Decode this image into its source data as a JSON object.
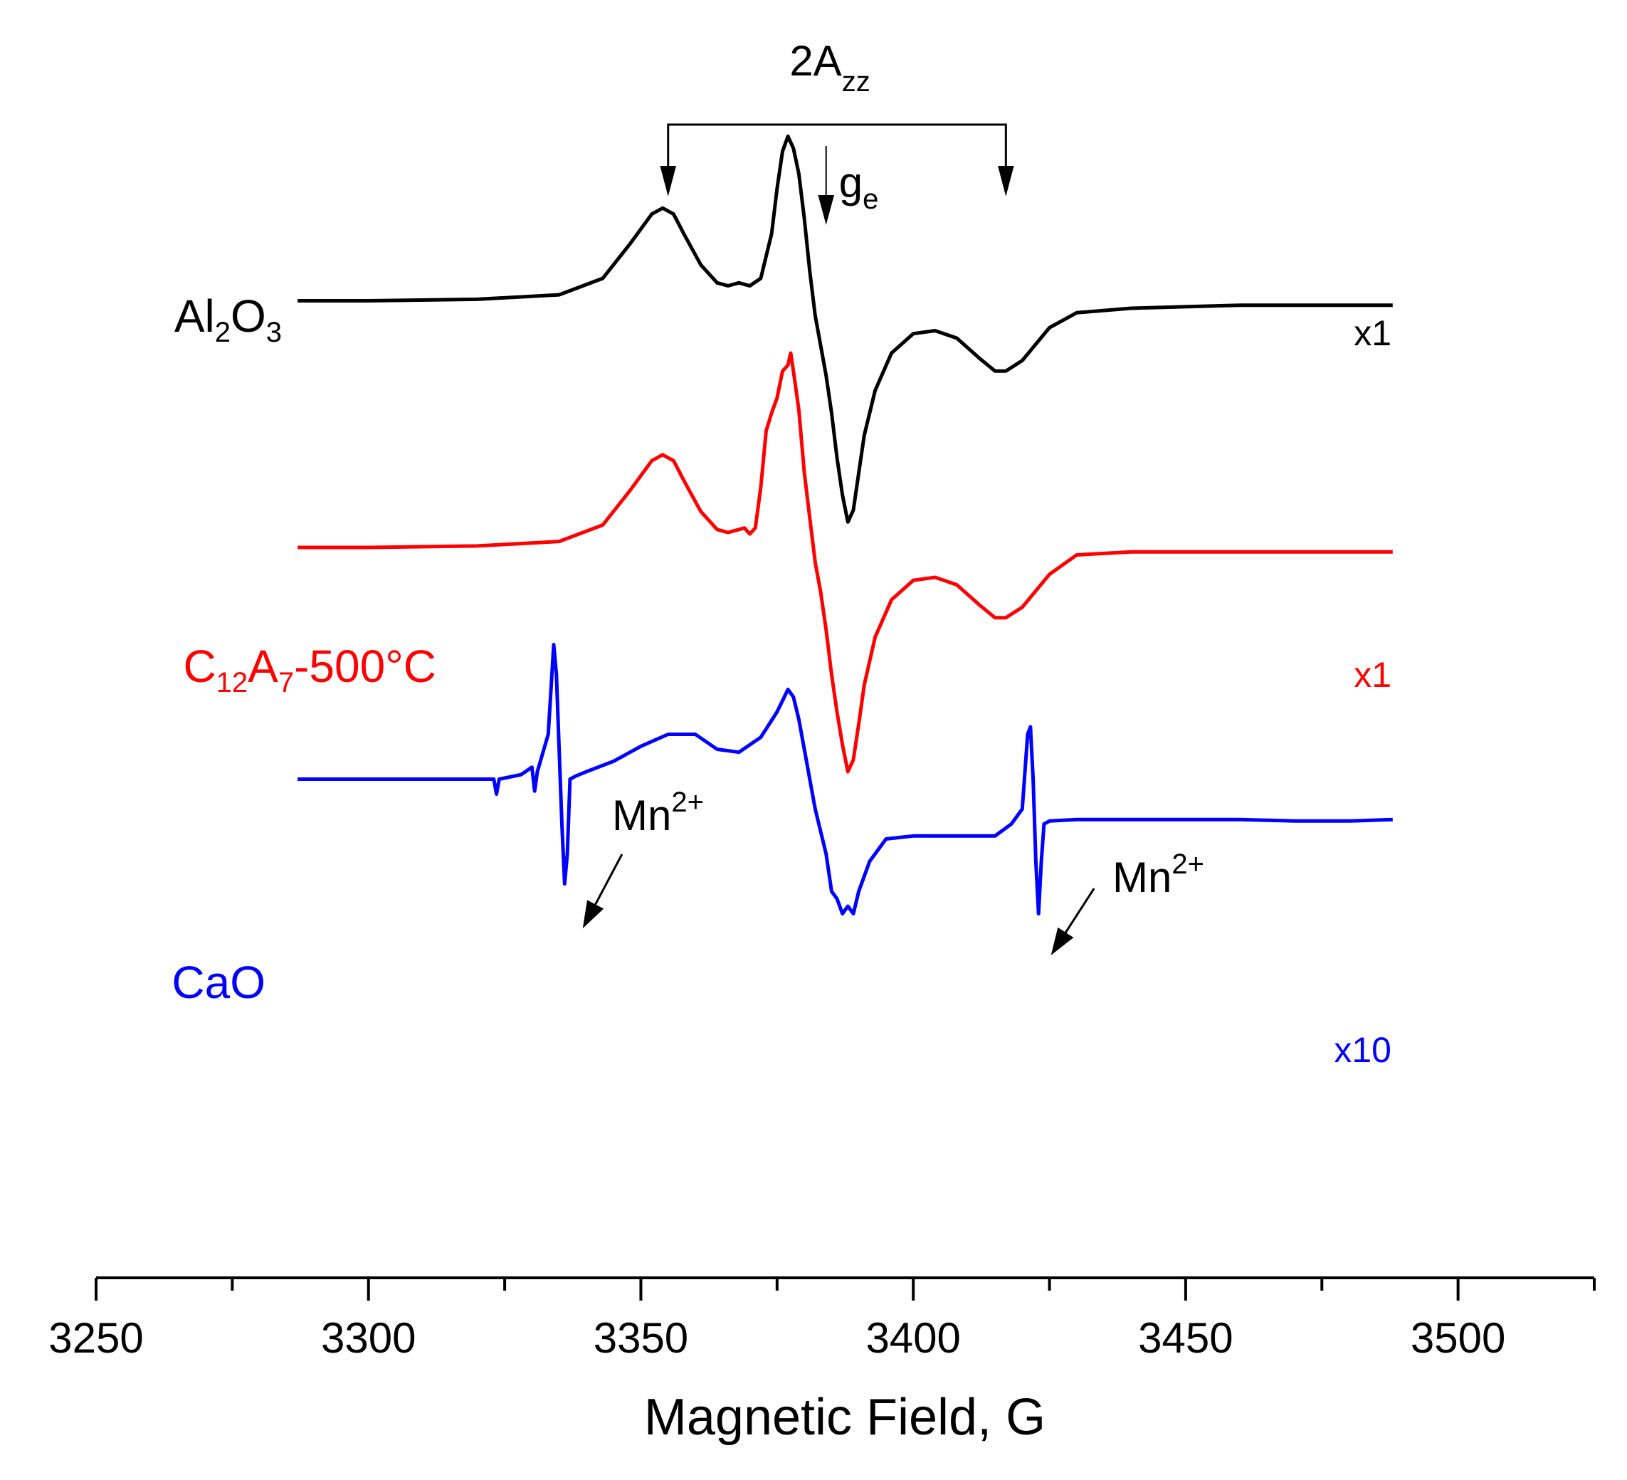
{
  "chart_data": {
    "type": "line",
    "title": "",
    "xlabel": "Magnetic Field, G",
    "ylabel": "",
    "xlim": [
      3250,
      3525
    ],
    "xticks": [
      "3250",
      "3300",
      "3350",
      "3400",
      "3450",
      "3500"
    ],
    "xtick_values": [
      3250,
      3300,
      3350,
      3400,
      3450,
      3500
    ],
    "grid": false,
    "legend": "none",
    "series": [
      {
        "name": "Al2O3",
        "label_main": "Al",
        "label_parts": [
          [
            "Al",
            ""
          ],
          [
            "2",
            "sub"
          ],
          [
            "O",
            ""
          ],
          [
            "3",
            "sub"
          ]
        ],
        "scale": "x1",
        "color": "#000000",
        "offset": 2.75,
        "x": [
          3287,
          3300,
          3320,
          3335,
          3343,
          3348,
          3352,
          3354,
          3356,
          3358,
          3361,
          3364,
          3366,
          3368,
          3370,
          3372,
          3374,
          3375,
          3376,
          3377,
          3378,
          3379,
          3380,
          3381,
          3382,
          3383,
          3384,
          3385,
          3386,
          3387,
          3388,
          3389,
          3390,
          3391,
          3393,
          3396,
          3400,
          3404,
          3408,
          3412,
          3415,
          3417,
          3420,
          3425,
          3430,
          3440,
          3460,
          3488
        ],
        "values": [
          0.0,
          0.0,
          0.01,
          0.04,
          0.15,
          0.38,
          0.58,
          0.62,
          0.58,
          0.44,
          0.24,
          0.12,
          0.1,
          0.12,
          0.1,
          0.15,
          0.45,
          0.75,
          1.0,
          1.1,
          1.02,
          0.85,
          0.55,
          0.2,
          -0.1,
          -0.3,
          -0.5,
          -0.75,
          -1.05,
          -1.3,
          -1.48,
          -1.4,
          -1.15,
          -0.9,
          -0.6,
          -0.35,
          -0.22,
          -0.2,
          -0.25,
          -0.38,
          -0.47,
          -0.47,
          -0.4,
          -0.18,
          -0.08,
          -0.05,
          -0.03,
          -0.03
        ]
      },
      {
        "name": "C12A7-500°C",
        "label_parts": [
          [
            "C",
            ""
          ],
          [
            "12",
            "sub"
          ],
          [
            "A",
            ""
          ],
          [
            "7",
            "sub"
          ],
          [
            "-500°C",
            ""
          ]
        ],
        "scale": "x1",
        "color": "#ff0000",
        "offset": 1.1,
        "x": [
          3287,
          3300,
          3320,
          3335,
          3343,
          3348,
          3352,
          3354,
          3356,
          3358,
          3361,
          3364,
          3366,
          3368,
          3369,
          3370,
          3371,
          3372,
          3373,
          3374,
          3375,
          3376,
          3377,
          3377.5,
          3378,
          3379,
          3380,
          3381,
          3382,
          3383,
          3384,
          3385,
          3386,
          3387,
          3388,
          3389,
          3390,
          3391,
          3393,
          3396,
          3400,
          3404,
          3408,
          3412,
          3415,
          3417,
          3420,
          3425,
          3430,
          3440,
          3460,
          3488
        ],
        "values": [
          0.0,
          0.0,
          0.01,
          0.04,
          0.15,
          0.38,
          0.58,
          0.62,
          0.58,
          0.44,
          0.24,
          0.12,
          0.1,
          0.12,
          0.13,
          0.09,
          0.13,
          0.4,
          0.78,
          0.9,
          1.0,
          1.18,
          1.22,
          1.3,
          1.18,
          0.92,
          0.5,
          0.2,
          -0.1,
          -0.3,
          -0.55,
          -0.85,
          -1.1,
          -1.32,
          -1.5,
          -1.42,
          -1.18,
          -0.92,
          -0.6,
          -0.35,
          -0.22,
          -0.2,
          -0.25,
          -0.38,
          -0.47,
          -0.47,
          -0.4,
          -0.18,
          -0.05,
          -0.03,
          -0.03,
          -0.03
        ]
      },
      {
        "name": "CaO",
        "label_parts": [
          [
            "CaO",
            ""
          ]
        ],
        "scale": "x10",
        "color": "#0000ff",
        "offset": -0.45,
        "x": [
          3287,
          3300,
          3310,
          3320,
          3323,
          3323.5,
          3324,
          3328,
          3330,
          3330.5,
          3331,
          3333,
          3334,
          3334.5,
          3335,
          3335.5,
          3336,
          3336.5,
          3337,
          3338,
          3340,
          3345,
          3350,
          3355,
          3360,
          3364,
          3368,
          3372,
          3375,
          3377,
          3378,
          3379,
          3380,
          3382,
          3384,
          3385,
          3386,
          3387,
          3388,
          3389,
          3390,
          3392,
          3395,
          3400,
          3405,
          3410,
          3415,
          3418,
          3420,
          3421,
          3421.5,
          3422,
          3422.5,
          3423,
          3423.5,
          3424,
          3425,
          3430,
          3435,
          3440,
          3450,
          3460,
          3470,
          3480,
          3488
        ],
        "values": [
          0.0,
          0.0,
          0.0,
          0.0,
          0.0,
          -0.1,
          0.0,
          0.03,
          0.08,
          -0.08,
          0.05,
          0.3,
          0.9,
          0.7,
          0.2,
          -0.3,
          -0.7,
          -0.5,
          0.0,
          0.02,
          0.05,
          0.12,
          0.22,
          0.3,
          0.3,
          0.2,
          0.18,
          0.28,
          0.45,
          0.6,
          0.55,
          0.4,
          0.2,
          -0.2,
          -0.5,
          -0.75,
          -0.8,
          -0.9,
          -0.85,
          -0.9,
          -0.75,
          -0.55,
          -0.4,
          -0.38,
          -0.38,
          -0.38,
          -0.38,
          -0.3,
          -0.2,
          0.3,
          0.35,
          0.0,
          -0.55,
          -0.9,
          -0.55,
          -0.3,
          -0.28,
          -0.27,
          -0.27,
          -0.27,
          -0.27,
          -0.27,
          -0.28,
          -0.28,
          -0.27
        ]
      }
    ],
    "annotations": {
      "azz_label": "2A",
      "azz_sub": "zz",
      "azz_field_left": 3355,
      "azz_field_right": 3417,
      "ge_label": "g",
      "ge_sub": "e",
      "ge_field": 3384,
      "mn_label": "Mn",
      "mn_sup": "2+",
      "mn_field_1": 3340,
      "mn_field_2": 3426
    }
  }
}
